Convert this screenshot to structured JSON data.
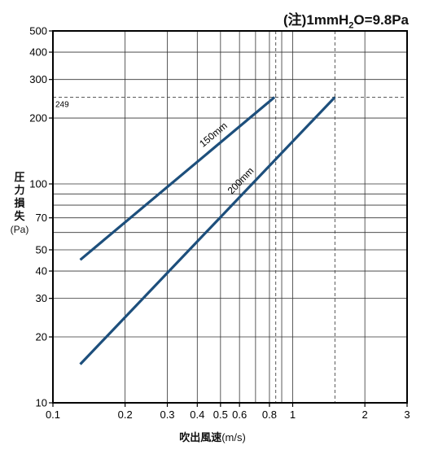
{
  "chart_data": {
    "type": "line",
    "note_prefix": "(注)1mmH",
    "note_sub": "2",
    "note_suffix": "O=9.8Pa",
    "ylabel_main": [
      "圧",
      "力",
      "損",
      "失"
    ],
    "ylabel_unit": "(Pa)",
    "xlabel_main": "吹出風速",
    "xlabel_unit": "(m/s)",
    "x_scale": "log",
    "y_scale": "log",
    "xlim": [
      0.1,
      3
    ],
    "ylim": [
      10,
      500
    ],
    "x_ticks": [
      {
        "value": 0.1,
        "label": "0.1"
      },
      {
        "value": 0.2,
        "label": "0.2"
      },
      {
        "value": 0.3,
        "label": "0.3"
      },
      {
        "value": 0.4,
        "label": "0.4"
      },
      {
        "value": 0.5,
        "label": "0.5"
      },
      {
        "value": 0.6,
        "label": "0.6"
      },
      {
        "value": 0.8,
        "label": "0.8"
      },
      {
        "value": 1,
        "label": "1"
      },
      {
        "value": 2,
        "label": "2"
      },
      {
        "value": 3,
        "label": "3"
      }
    ],
    "x_minor_gridlines": [
      0.7,
      0.9
    ],
    "y_ticks": [
      {
        "value": 10,
        "label": "10"
      },
      {
        "value": 20,
        "label": "20"
      },
      {
        "value": 30,
        "label": "30"
      },
      {
        "value": 40,
        "label": "40"
      },
      {
        "value": 50,
        "label": "50"
      },
      {
        "value": 70,
        "label": "70"
      },
      {
        "value": 100,
        "label": "100"
      },
      {
        "value": 200,
        "label": "200"
      },
      {
        "value": 300,
        "label": "300"
      },
      {
        "value": 400,
        "label": "400"
      },
      {
        "value": 500,
        "label": "500"
      }
    ],
    "y_minor_gridlines": [
      60,
      80,
      90
    ],
    "reference_line": {
      "value": 249,
      "label": "249"
    },
    "reference_verticals": [
      0.85,
      1.5
    ],
    "series": [
      {
        "name": "150mm",
        "color": "#1d4f7c",
        "x": [
          0.13,
          0.84
        ],
        "y": [
          45,
          249
        ]
      },
      {
        "name": "200mm",
        "color": "#1d4f7c",
        "x": [
          0.13,
          1.5
        ],
        "y": [
          15,
          249
        ]
      }
    ],
    "grid": true,
    "legend": "none"
  }
}
